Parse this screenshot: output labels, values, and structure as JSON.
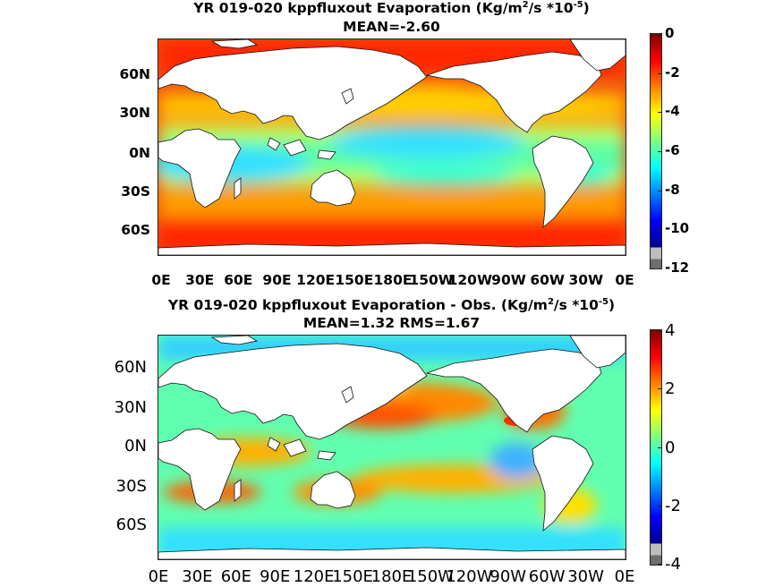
{
  "panels": [
    {
      "title_text": "YR 019-020 kppfluxout  Evaporation (Kg/m",
      "title_sup1": "2",
      "title_mid": "/s *10",
      "title_sup2": "-5",
      "title_end": ")",
      "stats": "MEAN=-2.60",
      "lat_labels": [
        "60N",
        "30N",
        "0N",
        "30S",
        "60S"
      ],
      "lon_labels": [
        "0E",
        "30E",
        "60E",
        "90E",
        "120E",
        "150E",
        "180E",
        "150W",
        "120W",
        "90W",
        "60W",
        "30W",
        "0E"
      ],
      "colorbar_ticks": [
        "0",
        "-2",
        "-4",
        "-6",
        "-8",
        "-10",
        "-12"
      ],
      "colorbar_range": [
        -12,
        0
      ],
      "colormap": [
        "#6e6e6e",
        "#bdbdbd",
        "#00008f",
        "#0000ff",
        "#0080ff",
        "#00ffff",
        "#80ff80",
        "#ffff00",
        "#ff8000",
        "#ff0000",
        "#800000"
      ]
    },
    {
      "title_text": "YR 019-020 kppfluxout Evaporation - Obs. (Kg/m",
      "title_sup1": "2",
      "title_mid": "/s *10",
      "title_sup2": "-5",
      "title_end": ")",
      "stats": "MEAN=1.32   RMS=1.67",
      "lat_labels": [
        "60N",
        "30N",
        "0N",
        "30S",
        "60S"
      ],
      "lon_labels": [
        "0E",
        "30E",
        "60E",
        "90E",
        "120E",
        "150E",
        "180E",
        "150W",
        "120W",
        "90W",
        "60W",
        "30W",
        "0E"
      ],
      "colorbar_ticks": [
        "4",
        "2",
        "0",
        "-2",
        "-4"
      ],
      "colorbar_range": [
        -4,
        4
      ],
      "colormap": [
        "#6e6e6e",
        "#bdbdbd",
        "#00008f",
        "#0000ff",
        "#0080ff",
        "#00ffff",
        "#80ff80",
        "#ffff00",
        "#ff8000",
        "#ff0000",
        "#800000"
      ]
    }
  ]
}
